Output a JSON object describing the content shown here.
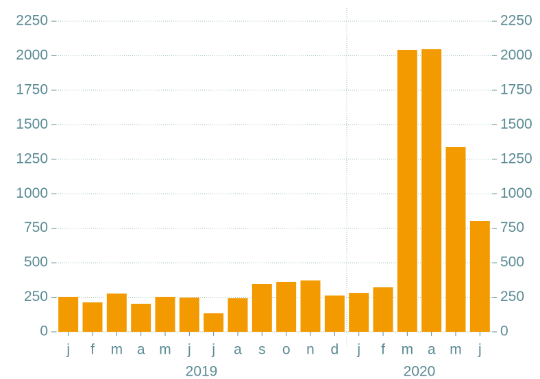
{
  "chart_data": {
    "type": "bar",
    "category_groups": [
      {
        "label": "2019",
        "categories": [
          "j",
          "f",
          "m",
          "a",
          "m",
          "j",
          "j",
          "a",
          "s",
          "o",
          "n",
          "d"
        ]
      },
      {
        "label": "2020",
        "categories": [
          "j",
          "f",
          "m",
          "a",
          "m",
          "j"
        ]
      }
    ],
    "values": [
      253,
      213,
      277,
      203,
      253,
      248,
      134,
      243,
      347,
      362,
      372,
      263,
      282,
      322,
      2042,
      2047,
      1338,
      803
    ],
    "color": "#f29a00",
    "ylim": [
      0,
      2250
    ],
    "yticks": [
      0,
      250,
      500,
      750,
      1000,
      1250,
      1500,
      1750,
      2000,
      2250
    ],
    "y2lim": [
      0,
      2250
    ],
    "y2ticks": [
      0,
      250,
      500,
      750,
      1000,
      1250,
      1500,
      1750,
      2000,
      2250
    ],
    "grid": true
  }
}
